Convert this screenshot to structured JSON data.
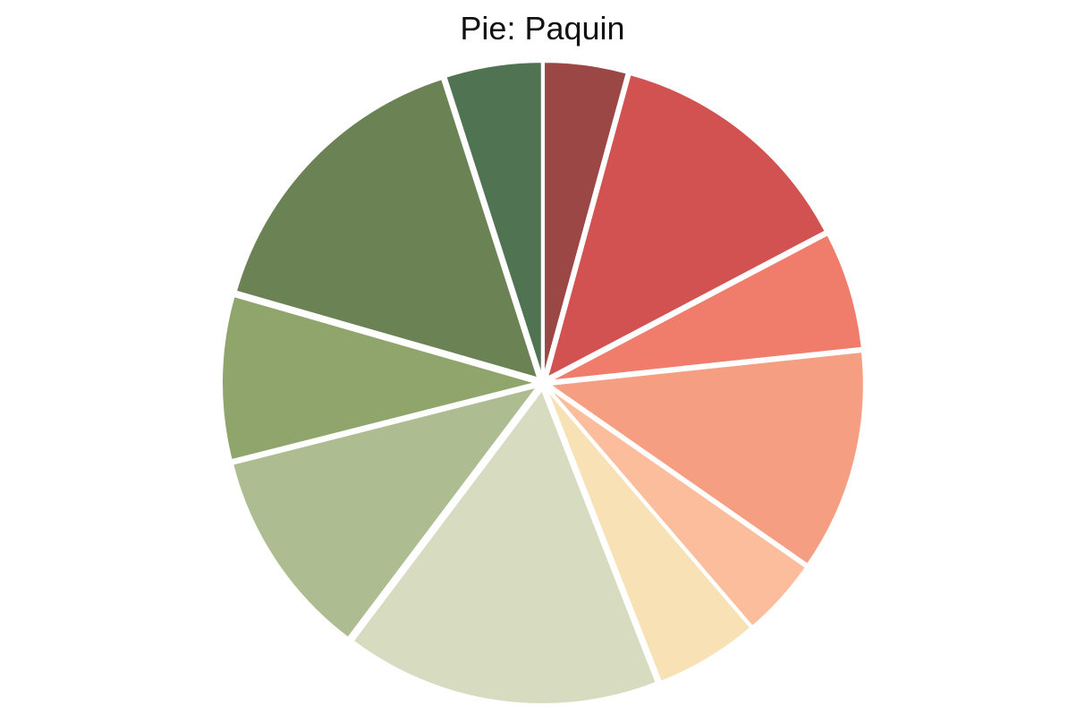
{
  "chart_data": {
    "type": "pie",
    "title": "Pie: Paquin",
    "start_angle_deg": 90,
    "direction": "clockwise",
    "exploded": true,
    "legend": "none",
    "slices": [
      {
        "value": 4.3,
        "color": "#9b4746"
      },
      {
        "value": 13.2,
        "color": "#d15250"
      },
      {
        "value": 6.1,
        "color": "#f07d6b"
      },
      {
        "value": 11.5,
        "color": "#f69e81"
      },
      {
        "value": 4.1,
        "color": "#fbbd9c"
      },
      {
        "value": 5.4,
        "color": "#f8e2b5"
      },
      {
        "value": 16.4,
        "color": "#d7dbbf"
      },
      {
        "value": 10.9,
        "color": "#aebd91"
      },
      {
        "value": 8.5,
        "color": "#8fa56b"
      },
      {
        "value": 15.8,
        "color": "#6b8255"
      },
      {
        "value": 5.0,
        "color": "#507352"
      }
    ]
  }
}
